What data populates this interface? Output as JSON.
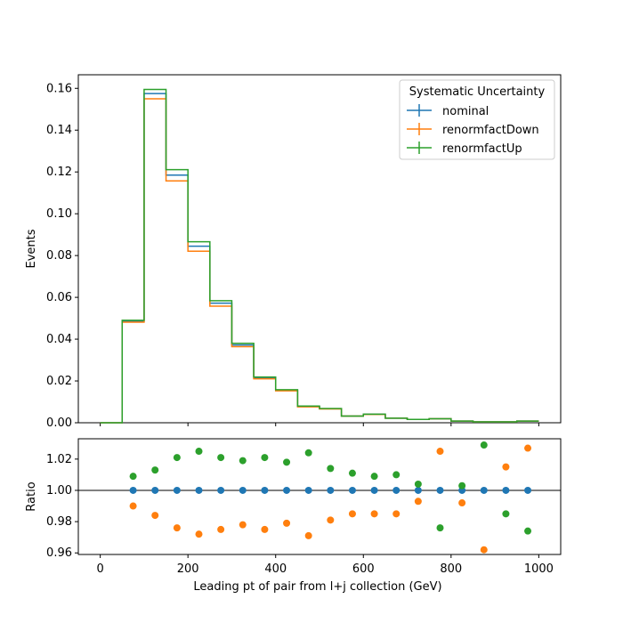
{
  "chart_data": [
    {
      "type": "line",
      "ylabel": "Events",
      "xlim": [
        -50,
        1050
      ],
      "ylim": [
        0,
        0.1665
      ],
      "yticks": [
        "0.00",
        "0.02",
        "0.04",
        "0.06",
        "0.08",
        "0.10",
        "0.12",
        "0.14",
        "0.16"
      ],
      "ytick_values": [
        0,
        0.02,
        0.04,
        0.06,
        0.08,
        0.1,
        0.12,
        0.14,
        0.16
      ],
      "bin_edges": [
        0,
        50,
        100,
        150,
        200,
        250,
        300,
        350,
        400,
        450,
        500,
        550,
        600,
        650,
        700,
        750,
        800,
        850,
        900,
        950,
        1000
      ],
      "legend": {
        "title": "Systematic Uncertainty",
        "placement": "top-right"
      },
      "series": [
        {
          "name": "nominal",
          "color": "#1f77b4",
          "values": [
            0.0,
            0.0486,
            0.1575,
            0.1185,
            0.0845,
            0.0572,
            0.0372,
            0.0215,
            0.0156,
            0.0078,
            0.0067,
            0.0032,
            0.0041,
            0.0022,
            0.0016,
            0.0019,
            0.0008,
            0.0004,
            0.0004,
            0.0008
          ]
        },
        {
          "name": "renormfactDown",
          "color": "#ff7f0e",
          "values": [
            0.0,
            0.0481,
            0.155,
            0.1157,
            0.0821,
            0.0558,
            0.0364,
            0.021,
            0.0153,
            0.0076,
            0.0066,
            0.0032,
            0.004,
            0.0022,
            0.0016,
            0.0019,
            0.0008,
            0.0004,
            0.0004,
            0.0008
          ]
        },
        {
          "name": "renormfactUp",
          "color": "#2ca02c",
          "values": [
            0.0,
            0.049,
            0.1595,
            0.1211,
            0.0866,
            0.0584,
            0.038,
            0.0219,
            0.0158,
            0.008,
            0.0068,
            0.0032,
            0.0041,
            0.0022,
            0.0016,
            0.0019,
            0.0008,
            0.0004,
            0.0004,
            0.0008
          ]
        }
      ]
    },
    {
      "type": "scatter",
      "xlabel": "Leading pt of pair from l+j collection (GeV)",
      "ylabel": "Ratio",
      "xlim": [
        -50,
        1050
      ],
      "ylim": [
        0.959,
        1.033
      ],
      "xticks": [
        "0",
        "200",
        "400",
        "600",
        "800",
        "1000"
      ],
      "xtick_values": [
        0,
        200,
        400,
        600,
        800,
        1000
      ],
      "yticks": [
        "0.96",
        "0.98",
        "1.00",
        "1.02"
      ],
      "ytick_values": [
        0.96,
        0.98,
        1.0,
        1.02
      ],
      "reference_line": 1.0,
      "x": [
        75,
        125,
        175,
        225,
        275,
        325,
        375,
        425,
        475,
        525,
        575,
        625,
        675,
        725,
        775,
        825,
        875,
        925,
        975
      ],
      "series": [
        {
          "name": "nominal",
          "color": "#1f77b4",
          "values": [
            1.0,
            1.0,
            1.0,
            1.0,
            1.0,
            1.0,
            1.0,
            1.0,
            1.0,
            1.0,
            1.0,
            1.0,
            1.0,
            1.0,
            1.0,
            1.0,
            1.0,
            1.0,
            1.0
          ]
        },
        {
          "name": "renormfactDown",
          "color": "#ff7f0e",
          "values": [
            0.99,
            0.984,
            0.976,
            0.972,
            0.975,
            0.978,
            0.975,
            0.979,
            0.971,
            0.981,
            0.985,
            0.985,
            0.985,
            0.993,
            1.025,
            0.992,
            0.962,
            1.015,
            1.027
          ]
        },
        {
          "name": "renormfactUp",
          "color": "#2ca02c",
          "values": [
            1.009,
            1.013,
            1.021,
            1.025,
            1.021,
            1.019,
            1.021,
            1.018,
            1.024,
            1.014,
            1.011,
            1.009,
            1.01,
            1.004,
            0.976,
            1.003,
            1.029,
            0.985,
            0.974
          ]
        }
      ]
    }
  ]
}
